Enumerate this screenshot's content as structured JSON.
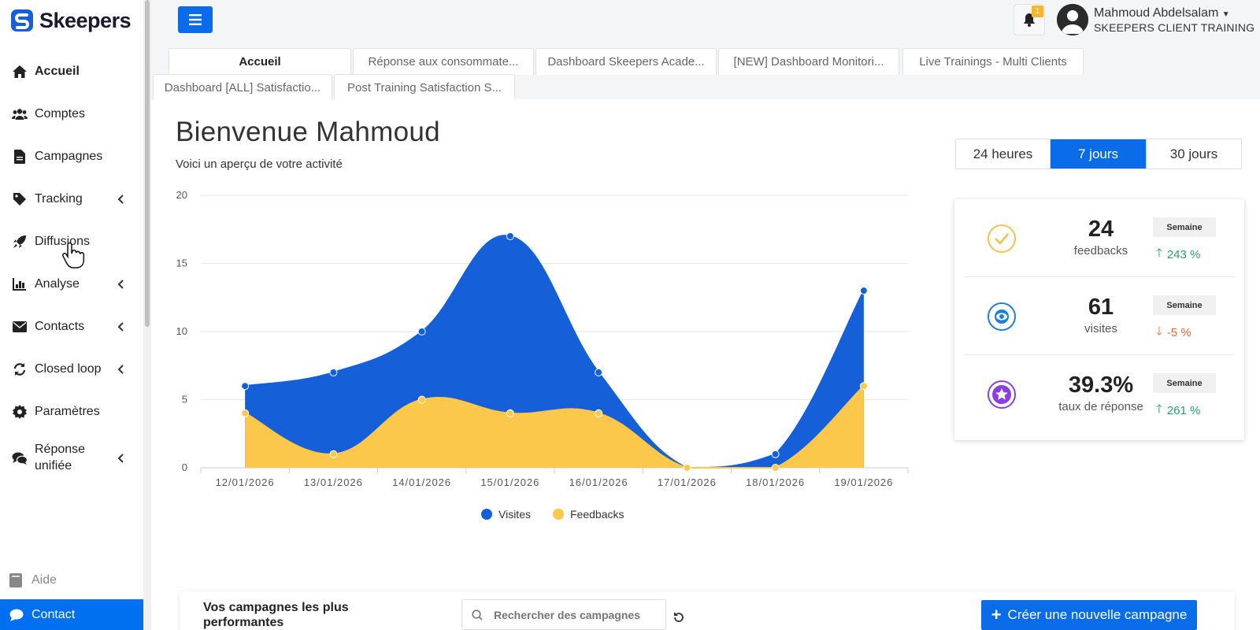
{
  "brand": {
    "name": "Skeepers",
    "color": "#0a6ce8"
  },
  "sidebar": {
    "items": [
      {
        "label": "Accueil",
        "icon": "home-icon",
        "active": true,
        "has_submenu": false
      },
      {
        "label": "Comptes",
        "icon": "users-icon",
        "has_submenu": false
      },
      {
        "label": "Campagnes",
        "icon": "file-icon",
        "has_submenu": false
      },
      {
        "label": "Tracking",
        "icon": "tag-icon",
        "has_submenu": true
      },
      {
        "label": "Diffusions",
        "icon": "rocket-icon",
        "has_submenu": false
      },
      {
        "label": "Analyse",
        "icon": "chart-icon",
        "has_submenu": true
      },
      {
        "label": "Contacts",
        "icon": "envelope-icon",
        "has_submenu": true
      },
      {
        "label": "Closed loop",
        "icon": "sync-icon",
        "has_submenu": true
      },
      {
        "label": "Paramètres",
        "icon": "gear-icon",
        "has_submenu": false
      },
      {
        "label": "Réponse unifiée",
        "icon": "chat-icon",
        "has_submenu": true
      }
    ],
    "help": "Aide",
    "contact": "Contact"
  },
  "header": {
    "notifications": "1",
    "user_name": "Mahmoud Abdelsalam",
    "user_org": "SKEEPERS CLIENT TRAINING"
  },
  "tabs": [
    "Accueil",
    "Réponse aux consommate...",
    "Dashboard Skeepers Acade...",
    "[NEW] Dashboard Monitori...",
    "Live Trainings - Multi Clients",
    "Dashboard [ALL] Satisfactio...",
    "Post Training Satisfaction S..."
  ],
  "main": {
    "title": "Bienvenue Mahmoud",
    "subtitle": "Voici un aperçu de votre activité",
    "periods": [
      "24 heures",
      "7 jours",
      "30 jours"
    ],
    "selected_period": "7 jours"
  },
  "chart_data": {
    "type": "area",
    "categories": [
      "12/01/2026",
      "13/01/2026",
      "14/01/2026",
      "15/01/2026",
      "16/01/2026",
      "17/01/2026",
      "18/01/2026",
      "19/01/2026"
    ],
    "series": [
      {
        "name": "Visites",
        "color": "#1560d8",
        "values": [
          6,
          7,
          10,
          17,
          7,
          0,
          1,
          13
        ]
      },
      {
        "name": "Feedbacks",
        "color": "#fcc84c",
        "values": [
          4,
          1,
          5,
          4,
          4,
          0,
          0,
          6
        ]
      }
    ],
    "yticks": [
      "0",
      "5",
      "10",
      "15",
      "20"
    ],
    "ylim": [
      0,
      20
    ],
    "legend": "bottom",
    "grid": true
  },
  "stats": [
    {
      "value": "24",
      "caption": "feedbacks",
      "period": "Semaine",
      "change": "243 %",
      "direction": "up",
      "icon": "check-circle-icon",
      "color": "#f5c14a"
    },
    {
      "value": "61",
      "caption": "visites",
      "period": "Semaine",
      "change": "-5 %",
      "direction": "down",
      "icon": "eye-icon",
      "color": "#1e7fd8"
    },
    {
      "value": "39.3%",
      "caption": "taux de réponse",
      "period": "Semaine",
      "change": "261 %",
      "direction": "up",
      "icon": "star-icon",
      "color": "#8b3fe0"
    }
  ],
  "campaigns": {
    "title": "Vos campagnes les plus performantes",
    "search_placeholder": "Rechercher des campagnes",
    "create_label": "Créer une nouvelle campagne"
  }
}
